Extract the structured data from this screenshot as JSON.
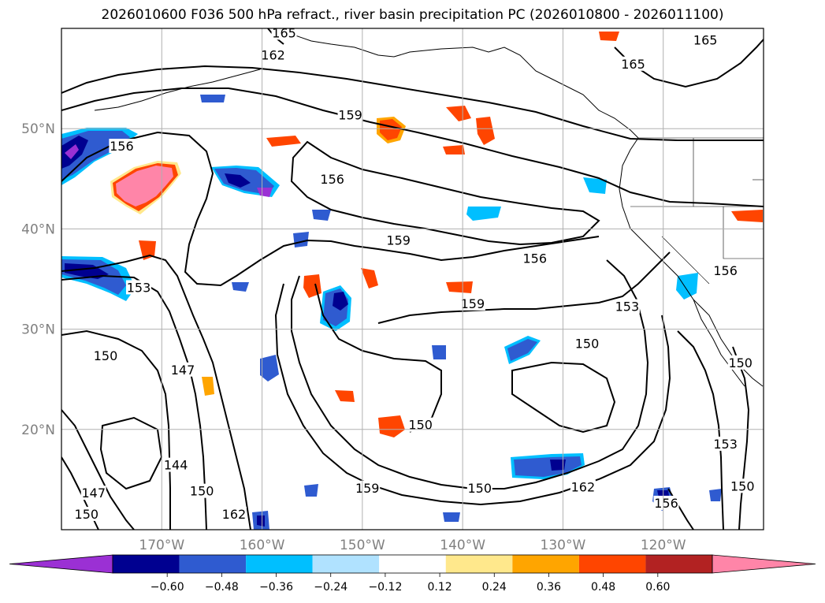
{
  "title": "2026010600 F036 500 hPa refract., river basin precipitation PC (2026010800 - 2026011100)",
  "map": {
    "lon_range": [
      -180,
      -110
    ],
    "lat_range": [
      10,
      60
    ],
    "lon_ticks": [
      {
        "value": -170,
        "label": "170°W"
      },
      {
        "value": -160,
        "label": "160°W"
      },
      {
        "value": -150,
        "label": "150°W"
      },
      {
        "value": -140,
        "label": "140°W"
      },
      {
        "value": -130,
        "label": "130°W"
      },
      {
        "value": -120,
        "label": "120°W"
      }
    ],
    "lat_ticks": [
      {
        "value": 50,
        "label": "50°N"
      },
      {
        "value": 40,
        "label": "40°N"
      },
      {
        "value": 30,
        "label": "30°N"
      },
      {
        "value": 20,
        "label": "20°N"
      }
    ],
    "grid": true,
    "contour_labels": [
      {
        "text": "165",
        "lon": -157.8,
        "lat": 59.5
      },
      {
        "text": "165",
        "lon": -115.8,
        "lat": 58.8
      },
      {
        "text": "165",
        "lon": -123.0,
        "lat": 56.4
      },
      {
        "text": "162",
        "lon": -158.9,
        "lat": 57.3
      },
      {
        "text": "159",
        "lon": -151.2,
        "lat": 51.3
      },
      {
        "text": "156",
        "lon": -174.0,
        "lat": 48.2
      },
      {
        "text": "156",
        "lon": -153.0,
        "lat": 44.9
      },
      {
        "text": "159",
        "lon": -146.4,
        "lat": 38.8
      },
      {
        "text": "156",
        "lon": -132.8,
        "lat": 37.0
      },
      {
        "text": "153",
        "lon": -172.3,
        "lat": 34.1
      },
      {
        "text": "159",
        "lon": -139.0,
        "lat": 32.5
      },
      {
        "text": "153",
        "lon": -123.6,
        "lat": 32.2
      },
      {
        "text": "156",
        "lon": -113.8,
        "lat": 35.8
      },
      {
        "text": "150",
        "lon": -175.6,
        "lat": 27.3
      },
      {
        "text": "147",
        "lon": -167.9,
        "lat": 25.9
      },
      {
        "text": "150",
        "lon": -127.6,
        "lat": 28.5
      },
      {
        "text": "150",
        "lon": -112.3,
        "lat": 26.6
      },
      {
        "text": "150",
        "lon": -144.2,
        "lat": 20.4
      },
      {
        "text": "144",
        "lon": -168.6,
        "lat": 16.4
      },
      {
        "text": "150",
        "lon": -166.0,
        "lat": 13.8
      },
      {
        "text": "147",
        "lon": -176.8,
        "lat": 13.6
      },
      {
        "text": "150",
        "lon": -177.5,
        "lat": 11.5
      },
      {
        "text": "159",
        "lon": -149.5,
        "lat": 14.1
      },
      {
        "text": "150",
        "lon": -138.3,
        "lat": 14.1
      },
      {
        "text": "162",
        "lon": -128.0,
        "lat": 14.2
      },
      {
        "text": "153",
        "lon": -113.8,
        "lat": 18.5
      },
      {
        "text": "150",
        "lon": -112.1,
        "lat": 14.3
      },
      {
        "text": "156",
        "lon": -119.7,
        "lat": 12.6
      },
      {
        "text": "162",
        "lon": -162.8,
        "lat": 11.5
      }
    ]
  },
  "colorbar": {
    "ticks": [
      "−0.60",
      "−0.48",
      "−0.36",
      "−0.24",
      "−0.12",
      "0.12",
      "0.24",
      "0.36",
      "0.48",
      "0.60"
    ],
    "colors": [
      "#9b30d4",
      "#000090",
      "#2f5bd0",
      "#00bfff",
      "#b0e2ff",
      "#ffffff",
      "#ffe88c",
      "#ffa500",
      "#ff4500",
      "#b22222",
      "#ff85a8"
    ],
    "extend": "both"
  }
}
